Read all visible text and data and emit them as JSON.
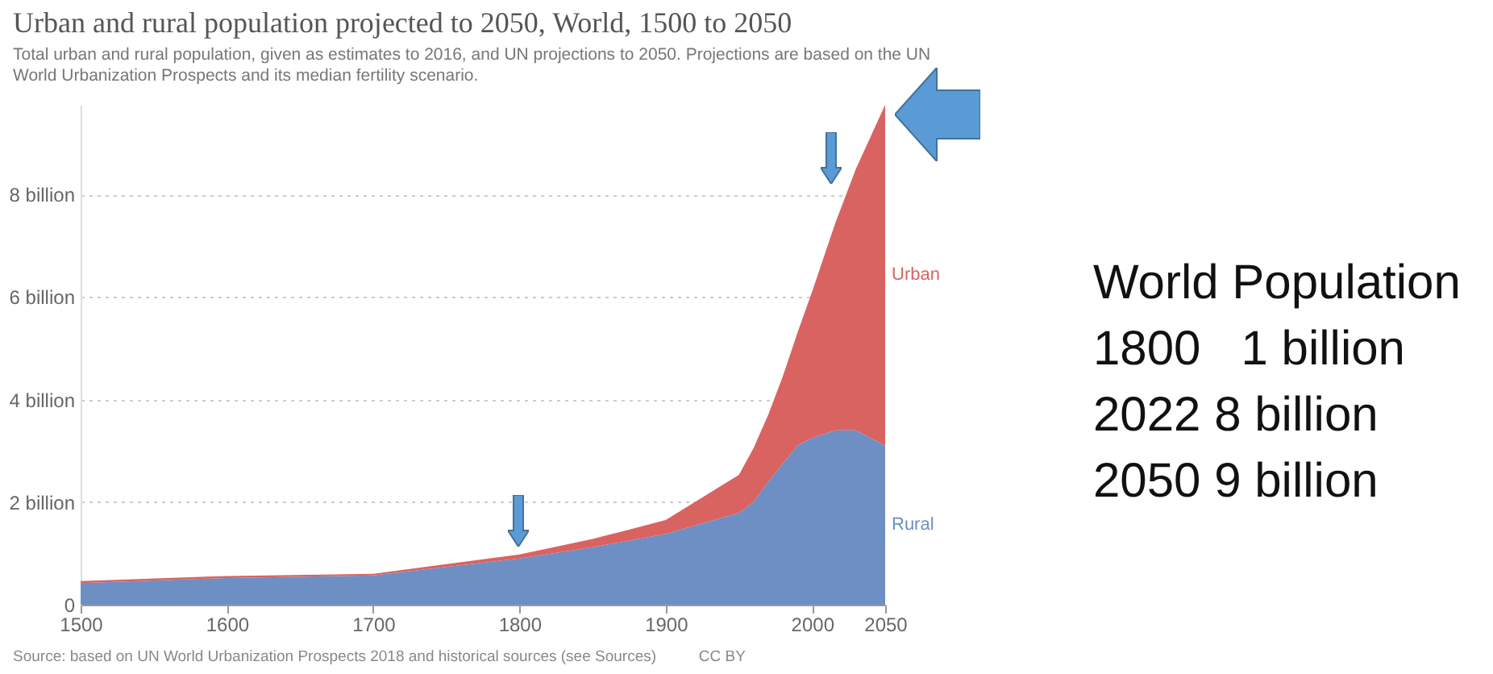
{
  "chart_data": {
    "type": "area",
    "stacked": true,
    "title": "Urban and rural population projected to 2050, World, 1500 to 2050",
    "subtitle": "Total urban and rural population, given as estimates to 2016, and UN projections to 2050. Projections are based on the UN World Urbanization Prospects and its median fertility scenario.",
    "x": [
      1500,
      1600,
      1700,
      1800,
      1850,
      1900,
      1950,
      1960,
      1970,
      1980,
      1990,
      2000,
      2016,
      2030,
      2050
    ],
    "series": [
      {
        "name": "Rural",
        "color": "#6d8fc4",
        "values": [
          0.42,
          0.52,
          0.57,
          0.9,
          1.12,
          1.38,
          1.79,
          2.0,
          2.4,
          2.75,
          3.1,
          3.25,
          3.4,
          3.4,
          3.1
        ]
      },
      {
        "name": "Urban",
        "color": "#d96361",
        "values": [
          0.04,
          0.04,
          0.03,
          0.08,
          0.16,
          0.27,
          0.74,
          1.05,
          1.3,
          1.7,
          2.2,
          2.85,
          4.05,
          5.1,
          6.65
        ]
      }
    ],
    "xlim": [
      1500,
      2050
    ],
    "xticks": [
      1500,
      1600,
      1700,
      1800,
      1900,
      2000,
      2050
    ],
    "yticks": [
      0,
      {
        "value": 2,
        "label": "2 billion"
      },
      {
        "value": 4,
        "label": "4 billion"
      },
      {
        "value": 6,
        "label": "6 billion"
      },
      {
        "value": 8,
        "label": "8 billion"
      }
    ],
    "ylim": [
      0,
      9.75
    ],
    "grid": "y",
    "annotations": [
      "World Population",
      "1800   1 billion",
      "2022 8 billion",
      "2050 9 billion",
      "Source: based on UN World Urbanization Prospects 2018 and historical sources (see Sources)",
      "CC BY"
    ]
  }
}
